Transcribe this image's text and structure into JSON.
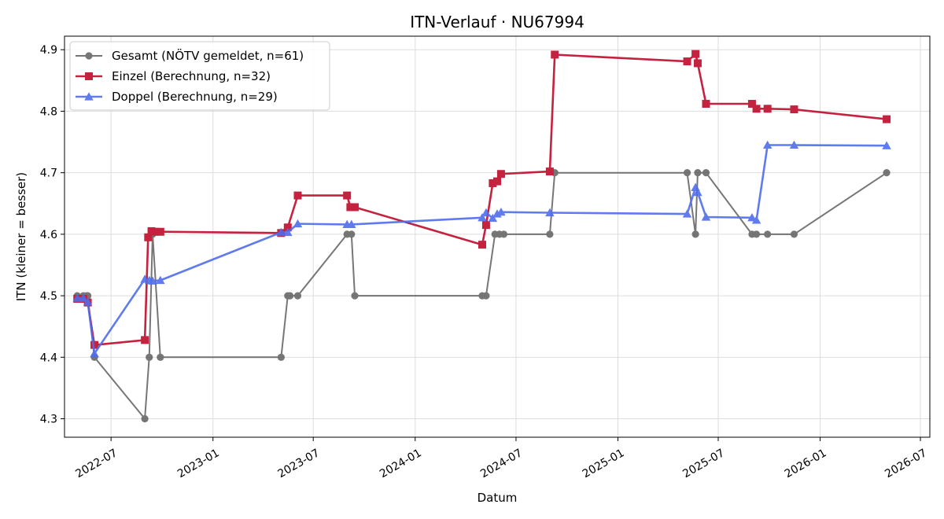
{
  "chart_data": {
    "type": "line",
    "title": "ITN-Verlauf · NU67994",
    "xlabel": "Datum",
    "ylabel": "ITN  (kleiner = besser)",
    "x_axis_type": "date",
    "xlim": [
      "2022-04-08",
      "2026-07-18"
    ],
    "ylim": [
      4.27,
      4.922
    ],
    "x_ticks": [
      "2022-07-01",
      "2023-01-01",
      "2023-07-01",
      "2024-01-01",
      "2024-07-01",
      "2025-01-01",
      "2025-07-01",
      "2026-01-01",
      "2026-07-01"
    ],
    "x_tick_labels": [
      "2022-07",
      "2023-01",
      "2023-07",
      "2024-01",
      "2024-07",
      "2025-01",
      "2025-07",
      "2026-01",
      "2026-07"
    ],
    "y_ticks": [
      4.3,
      4.4,
      4.5,
      4.6,
      4.7,
      4.8,
      4.9
    ],
    "y_tick_labels": [
      "4.3",
      "4.4",
      "4.5",
      "4.6",
      "4.7",
      "4.8",
      "4.9"
    ],
    "grid": true,
    "legend_position": "top-left",
    "series": [
      {
        "name": "Gesamt (NÖTV gemeldet, n=61)",
        "color": "#555555",
        "marker": "circle",
        "points": [
          [
            "2022-05-01",
            4.5
          ],
          [
            "2022-05-12",
            4.5
          ],
          [
            "2022-05-18",
            4.5
          ],
          [
            "2022-05-20",
            4.5
          ],
          [
            "2022-06-01",
            4.4
          ],
          [
            "2022-08-31",
            4.3
          ],
          [
            "2022-09-08",
            4.4
          ],
          [
            "2022-09-14",
            4.6
          ],
          [
            "2022-09-28",
            4.4
          ],
          [
            "2023-05-04",
            4.4
          ],
          [
            "2023-05-16",
            4.5
          ],
          [
            "2023-05-20",
            4.5
          ],
          [
            "2023-06-03",
            4.5
          ],
          [
            "2023-08-31",
            4.6
          ],
          [
            "2023-09-08",
            4.6
          ],
          [
            "2023-09-14",
            4.5
          ],
          [
            "2024-05-01",
            4.5
          ],
          [
            "2024-05-08",
            4.5
          ],
          [
            "2024-05-24",
            4.6
          ],
          [
            "2024-06-01",
            4.6
          ],
          [
            "2024-06-09",
            4.6
          ],
          [
            "2024-08-31",
            4.6
          ],
          [
            "2024-09-09",
            4.7
          ],
          [
            "2025-05-06",
            4.7
          ],
          [
            "2025-05-21",
            4.6
          ],
          [
            "2025-05-25",
            4.7
          ],
          [
            "2025-06-09",
            4.7
          ],
          [
            "2025-08-31",
            4.6
          ],
          [
            "2025-09-08",
            4.6
          ],
          [
            "2025-09-28",
            4.6
          ],
          [
            "2025-11-15",
            4.6
          ],
          [
            "2026-05-01",
            4.7
          ]
        ]
      },
      {
        "name": "Einzel (Berechnung, n=32)",
        "color": "#c4223e",
        "marker": "square",
        "points": [
          [
            "2022-05-01",
            4.495
          ],
          [
            "2022-05-12",
            4.495
          ],
          [
            "2022-05-20",
            4.489
          ],
          [
            "2022-06-01",
            4.42
          ],
          [
            "2022-08-31",
            4.428
          ],
          [
            "2022-09-06",
            4.595
          ],
          [
            "2022-09-12",
            4.605
          ],
          [
            "2022-09-18",
            4.604
          ],
          [
            "2022-09-28",
            4.604
          ],
          [
            "2023-05-04",
            4.602
          ],
          [
            "2023-05-16",
            4.611
          ],
          [
            "2023-06-03",
            4.663
          ],
          [
            "2023-08-31",
            4.663
          ],
          [
            "2023-09-06",
            4.644
          ],
          [
            "2023-09-14",
            4.644
          ],
          [
            "2024-05-01",
            4.583
          ],
          [
            "2024-05-08",
            4.615
          ],
          [
            "2024-05-20",
            4.683
          ],
          [
            "2024-05-28",
            4.686
          ],
          [
            "2024-06-04",
            4.698
          ],
          [
            "2024-08-31",
            4.702
          ],
          [
            "2024-09-09",
            4.892
          ],
          [
            "2025-05-06",
            4.881
          ],
          [
            "2025-05-21",
            4.893
          ],
          [
            "2025-05-25",
            4.878
          ],
          [
            "2025-06-09",
            4.812
          ],
          [
            "2025-08-31",
            4.812
          ],
          [
            "2025-09-08",
            4.804
          ],
          [
            "2025-09-28",
            4.804
          ],
          [
            "2025-11-15",
            4.803
          ],
          [
            "2026-05-01",
            4.787
          ]
        ]
      },
      {
        "name": "Doppel (Berechnung, n=29)",
        "color": "#4f6ded",
        "marker": "triangle",
        "points": [
          [
            "2022-05-01",
            4.496
          ],
          [
            "2022-05-12",
            4.496
          ],
          [
            "2022-05-20",
            4.49
          ],
          [
            "2022-06-01",
            4.406
          ],
          [
            "2022-08-31",
            4.527
          ],
          [
            "2022-09-08",
            4.525
          ],
          [
            "2022-09-14",
            4.524
          ],
          [
            "2022-09-28",
            4.525
          ],
          [
            "2023-05-04",
            4.603
          ],
          [
            "2023-05-16",
            4.603
          ],
          [
            "2023-06-03",
            4.617
          ],
          [
            "2023-08-31",
            4.616
          ],
          [
            "2023-09-08",
            4.616
          ],
          [
            "2024-05-01",
            4.627
          ],
          [
            "2024-05-08",
            4.635
          ],
          [
            "2024-05-20",
            4.626
          ],
          [
            "2024-05-28",
            4.633
          ],
          [
            "2024-06-04",
            4.636
          ],
          [
            "2024-08-31",
            4.635
          ],
          [
            "2025-05-06",
            4.633
          ],
          [
            "2025-05-21",
            4.676
          ],
          [
            "2025-05-25",
            4.668
          ],
          [
            "2025-06-09",
            4.628
          ],
          [
            "2025-08-31",
            4.627
          ],
          [
            "2025-09-08",
            4.623
          ],
          [
            "2025-09-28",
            4.745
          ],
          [
            "2025-11-15",
            4.745
          ],
          [
            "2026-05-01",
            4.744
          ]
        ]
      }
    ]
  }
}
